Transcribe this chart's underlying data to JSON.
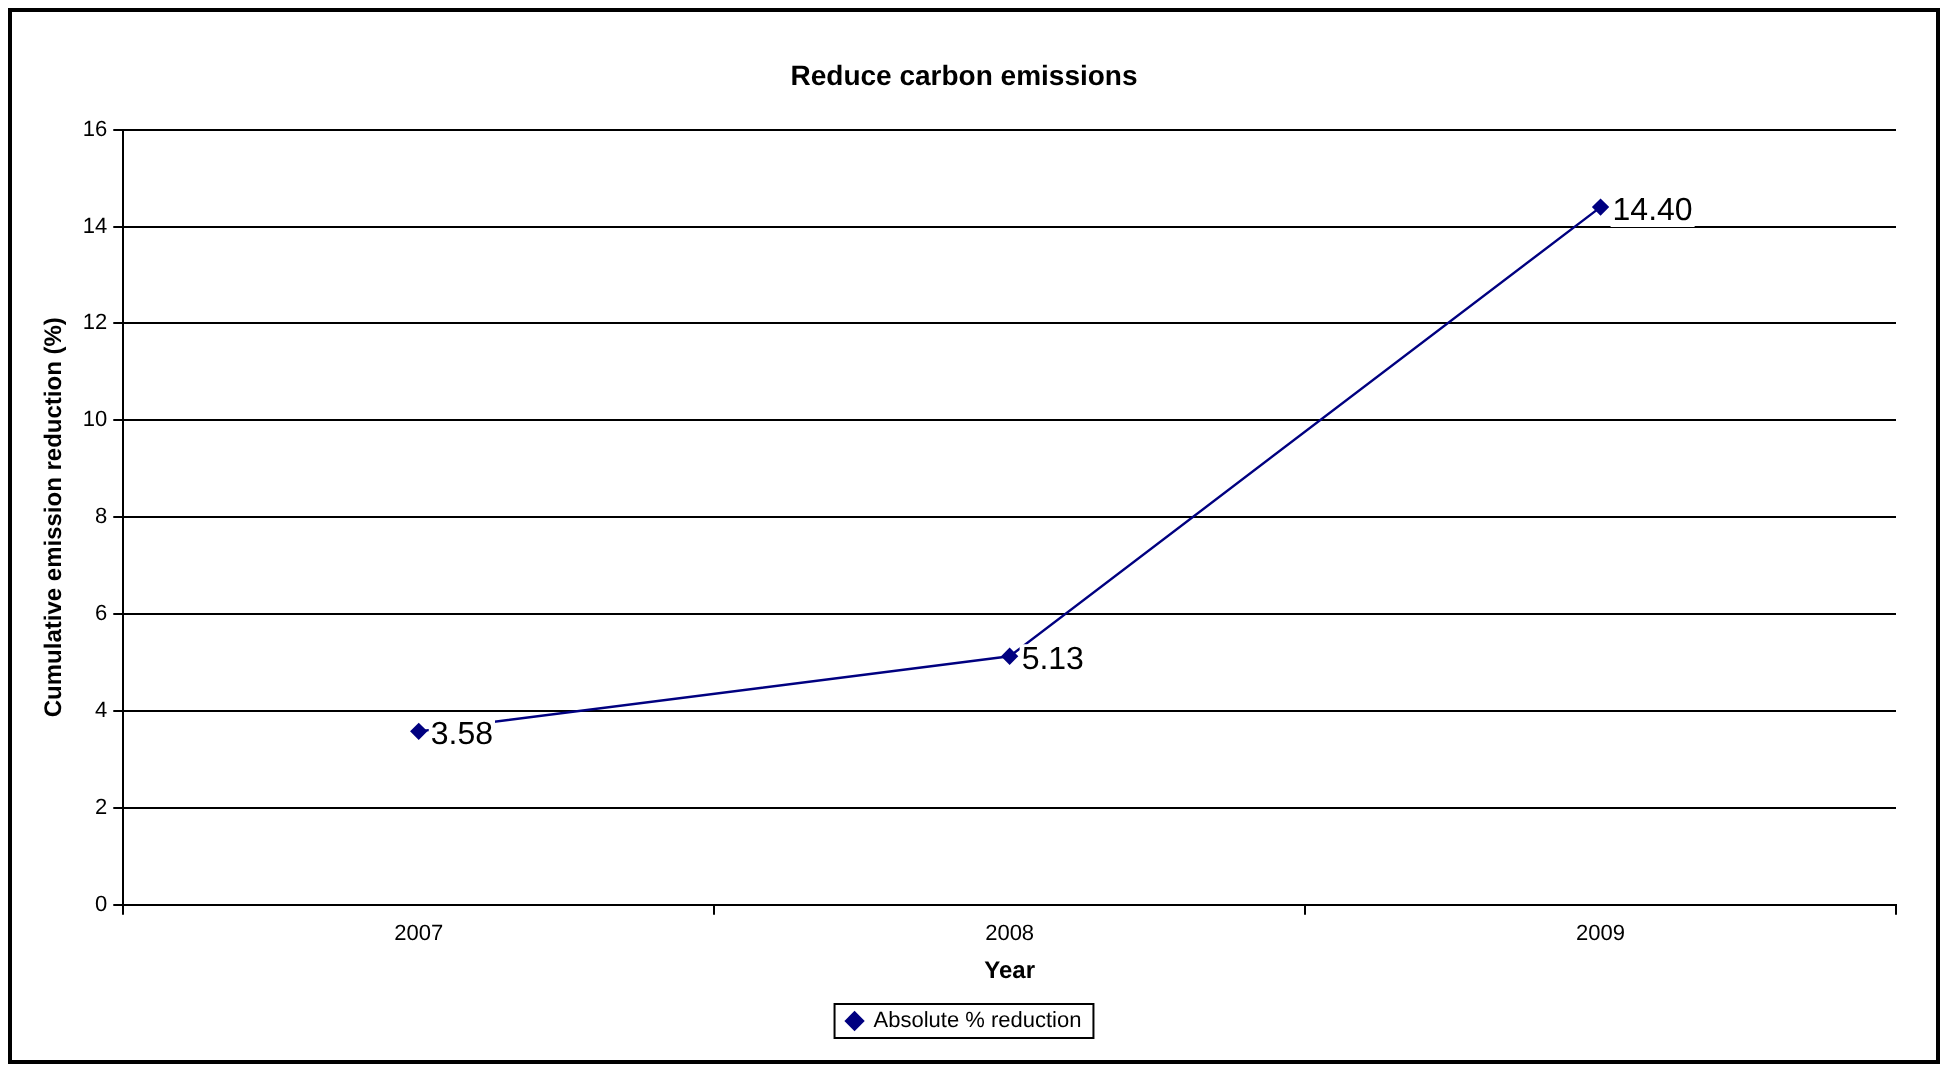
{
  "chart_data": {
    "type": "line",
    "title": "Reduce carbon emissions",
    "xlabel": "Year",
    "ylabel": "Cumulative emission reduction (%)",
    "categories": [
      "2007",
      "2008",
      "2009"
    ],
    "series": [
      {
        "name": "Absolute % reduction",
        "color": "#000080",
        "values": [
          3.58,
          5.13,
          14.4
        ],
        "value_labels": [
          "3.58",
          "5.13",
          "14.40"
        ]
      }
    ],
    "ylim": [
      0,
      16
    ],
    "yticks": [
      0,
      2,
      4,
      6,
      8,
      10,
      12,
      14,
      16
    ],
    "grid": "y",
    "legend": "bottom",
    "marker": "diamond",
    "line_style": "solid"
  }
}
